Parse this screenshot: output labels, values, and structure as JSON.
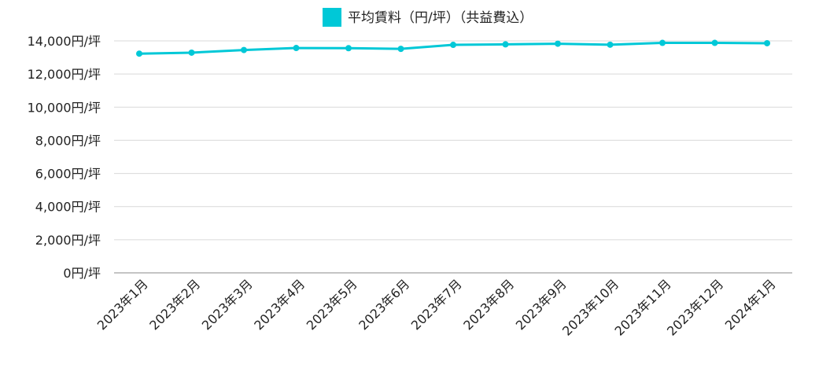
{
  "chart_data": {
    "type": "line",
    "title": "",
    "xlabel": "",
    "ylabel": "",
    "ylim": [
      0,
      14000
    ],
    "y_ticks": [
      "0円/坪",
      "2,000円/坪",
      "4,000円/坪",
      "6,000円/坪",
      "8,000円/坪",
      "10,000円/坪",
      "12,000円/坪",
      "14,000円/坪"
    ],
    "y_tick_values": [
      0,
      2000,
      4000,
      6000,
      8000,
      10000,
      12000,
      14000
    ],
    "categories": [
      "2023年1月",
      "2023年2月",
      "2023年3月",
      "2023年4月",
      "2023年5月",
      "2023年6月",
      "2023年7月",
      "2023年8月",
      "2023年9月",
      "2023年10月",
      "2023年11月",
      "2023年12月",
      "2024年1月"
    ],
    "series": [
      {
        "name": "平均賃料（円/坪）（共益費込）",
        "color": "#00c8d7",
        "values": [
          13230,
          13290,
          13450,
          13570,
          13560,
          13520,
          13760,
          13790,
          13830,
          13770,
          13880,
          13880,
          13860
        ]
      }
    ],
    "grid": true,
    "legend_position": "top-center"
  }
}
